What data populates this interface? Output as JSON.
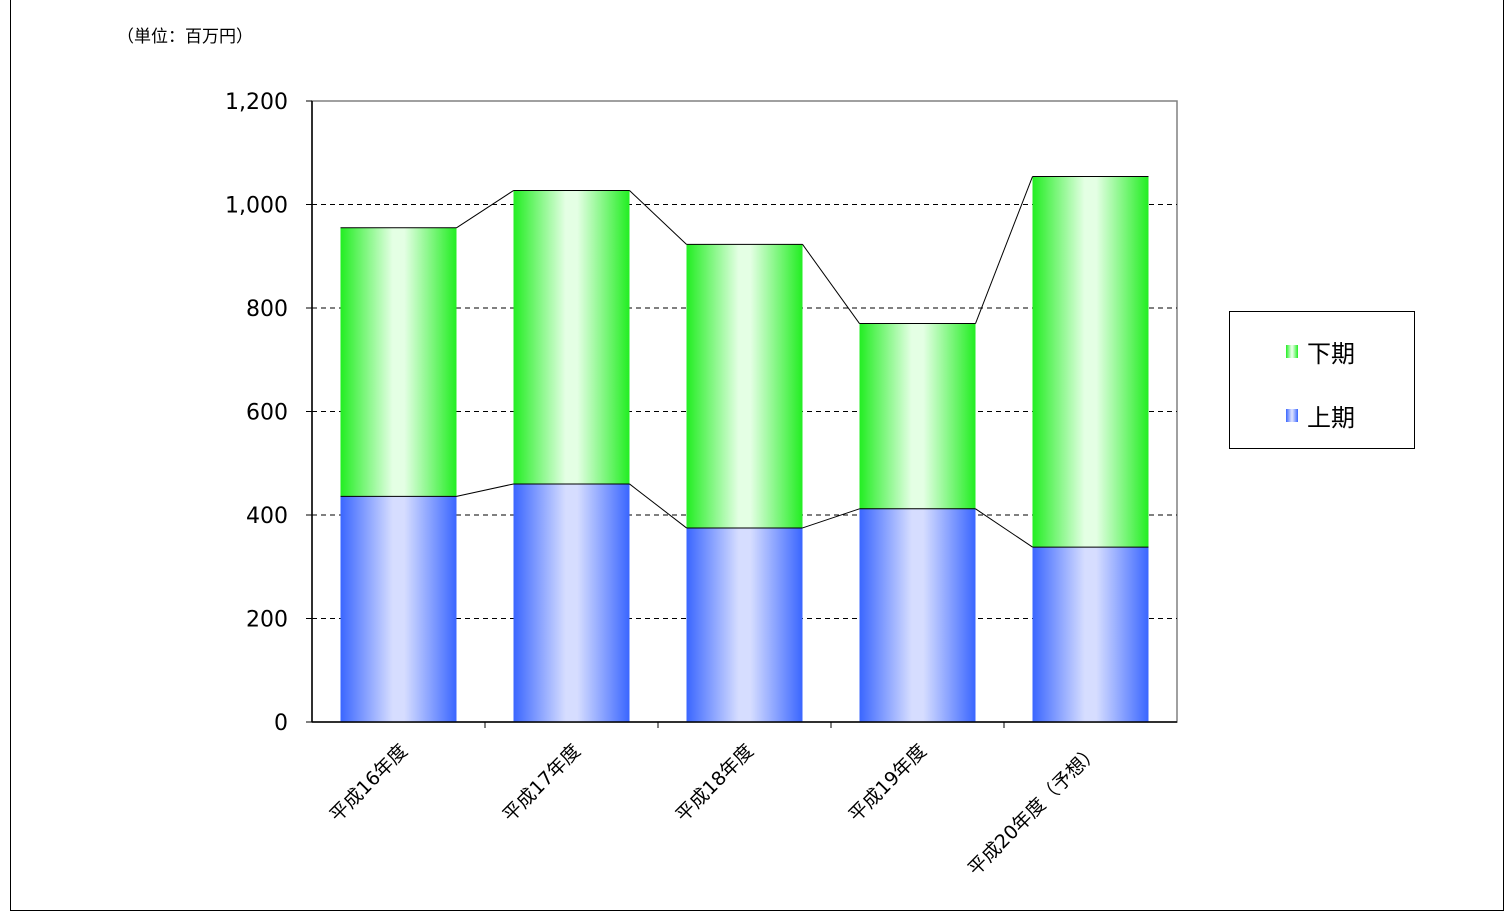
{
  "unit_label": "（単位：百万円）",
  "colors": {
    "lower_dark": "#3a66ff",
    "lower_light": "#d6ddff",
    "upper_dark": "#22ee22",
    "upper_light": "#e4ffe4",
    "gridline": "#000000",
    "axis": "#000000"
  },
  "chart_data": {
    "type": "bar",
    "stacked": true,
    "categories": [
      "平成16年度",
      "平成17年度",
      "平成18年度",
      "平成19年度",
      "平成20年度（予想）"
    ],
    "series": [
      {
        "name": "上期",
        "values": [
          436,
          460,
          375,
          412,
          338
        ]
      },
      {
        "name": "下期",
        "values": [
          519,
          567,
          548,
          358,
          716
        ]
      }
    ],
    "ylim": [
      0,
      1200
    ],
    "yticks": [
      0,
      200,
      400,
      600,
      800,
      1000,
      1200
    ],
    "ytick_labels": [
      "0",
      "200",
      "400",
      "600",
      "800",
      "1,000",
      "1,200"
    ],
    "grid": true,
    "series_lines": true,
    "legend": {
      "placement": "right",
      "entries": [
        "下期",
        "上期"
      ]
    },
    "title": "",
    "xlabel": "",
    "ylabel": ""
  }
}
